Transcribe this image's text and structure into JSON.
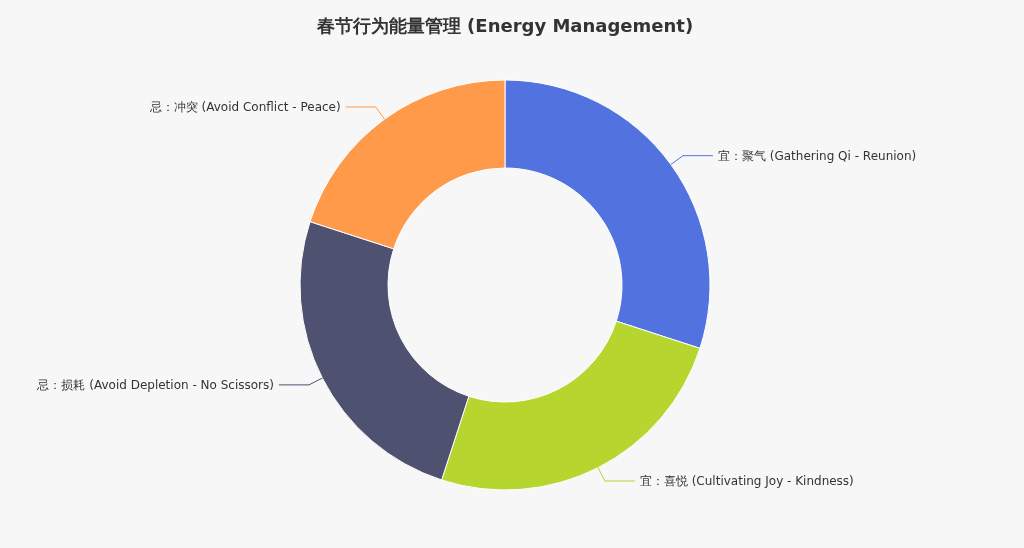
{
  "chart_data": {
    "type": "donut",
    "title": "春节行为能量管理 (Energy Management)",
    "categories": [
      "宜：聚气 (Gathering Qi - Reunion)",
      "宜：喜悦 (Cultivating Joy - Kindness)",
      "忌：损耗 (Avoid Depletion - No Scissors)",
      "忌：冲突 (Avoid Conflict - Peace)"
    ],
    "values": [
      30,
      25,
      25,
      20
    ],
    "colors": [
      "#5272e0",
      "#b6d62f",
      "#4f5170",
      "#ff9a4a"
    ]
  }
}
